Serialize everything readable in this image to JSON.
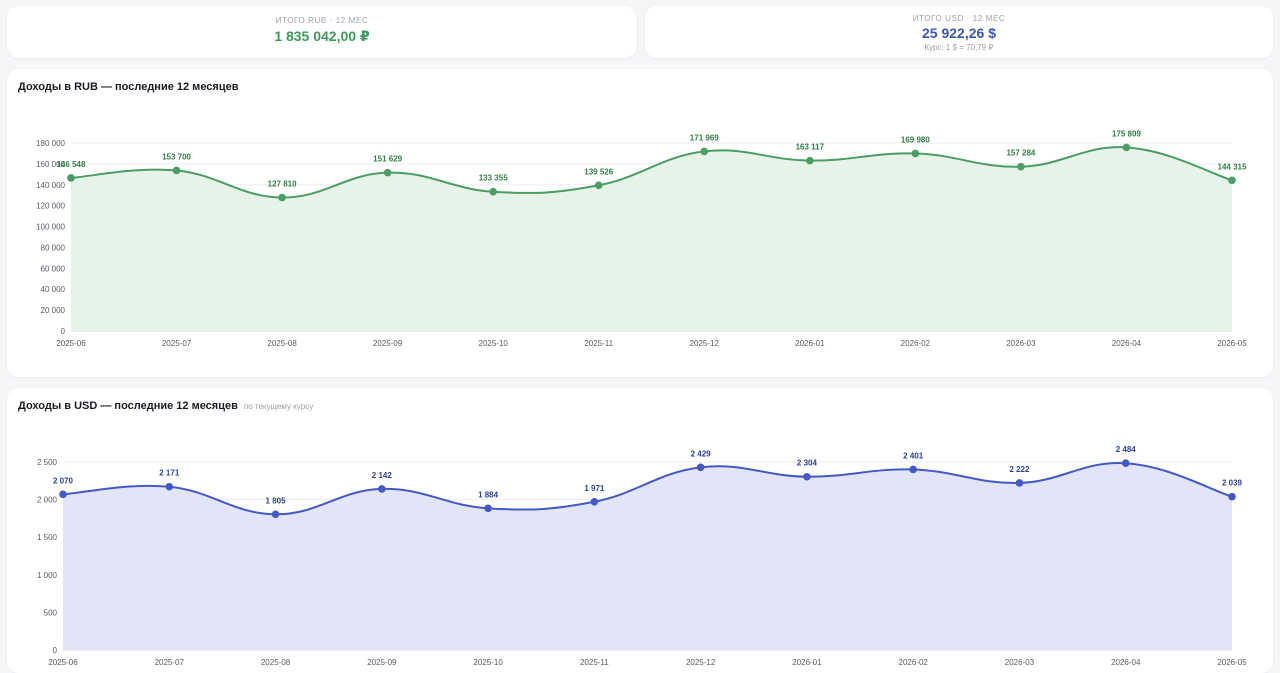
{
  "summary": {
    "rub": {
      "label": "ИТОГО RUB · 12 МЕС",
      "value": "1 835 042,00 ₽",
      "color": "#3b9a5a"
    },
    "usd": {
      "label": "ИТОГО USD · 12 МЕС",
      "value": "25 922,26 $",
      "note": "Курс: 1 $ = 70,79 ₽",
      "color": "#3b55b8"
    }
  },
  "charts": {
    "rub": {
      "title": "Доходы в RUB — последние 12 месяцев",
      "subtitle": ""
    },
    "usd": {
      "title": "Доходы в USD — последние 12 месяцев",
      "subtitle": "по текущему курсу"
    }
  },
  "chart_data": [
    {
      "type": "area",
      "title": "Доходы в RUB — последние 12 месяцев",
      "categories": [
        "2025-06",
        "2025-07",
        "2025-08",
        "2025-09",
        "2025-10",
        "2025-11",
        "2025-12",
        "2026-01",
        "2026-02",
        "2026-03",
        "2026-04",
        "2026-05"
      ],
      "values": [
        146548,
        153700,
        127810,
        151629,
        133355,
        139526,
        171969,
        163117,
        169980,
        157284,
        175809,
        144315
      ],
      "data_labels": [
        "146 548",
        "153 700",
        "127 810",
        "151 629",
        "133 355",
        "139 526",
        "171 969",
        "163 117",
        "169 980",
        "157 284",
        "175 809",
        "144 315"
      ],
      "ylim": [
        0,
        180000
      ],
      "yticks": [
        0,
        20000,
        40000,
        60000,
        80000,
        100000,
        120000,
        140000,
        160000,
        180000
      ],
      "ytick_labels": [
        "0",
        "20 000",
        "40 000",
        "60 000",
        "80 000",
        "100 000",
        "120 000",
        "140 000",
        "160 000",
        "180 000"
      ],
      "line_color": "#4a9d63",
      "fill_color": "#e6f3e8",
      "label_color": "#2f7d47",
      "grid": true
    },
    {
      "type": "area",
      "title": "Доходы в USD — последние 12 месяцев",
      "categories": [
        "2025-06",
        "2025-07",
        "2025-08",
        "2025-09",
        "2025-10",
        "2025-11",
        "2025-12",
        "2026-01",
        "2026-02",
        "2026-03",
        "2026-04",
        "2026-05"
      ],
      "values": [
        2070,
        2171,
        1805,
        2142,
        1884,
        1971,
        2429,
        2304,
        2401,
        2222,
        2484,
        2039
      ],
      "data_labels": [
        "2 070",
        "2 171",
        "1 805",
        "2 142",
        "1 884",
        "1 971",
        "2 429",
        "2 304",
        "2 401",
        "2 222",
        "2 484",
        "2 039"
      ],
      "ylim": [
        0,
        2500
      ],
      "yticks": [
        0,
        500,
        1000,
        1500,
        2000,
        2500
      ],
      "ytick_labels": [
        "0",
        "500",
        "1 000",
        "1 500",
        "2 000",
        "2 500"
      ],
      "line_color": "#4459c8",
      "fill_color": "#e2e5f8",
      "label_color": "#2d3e9a",
      "grid": true
    }
  ]
}
